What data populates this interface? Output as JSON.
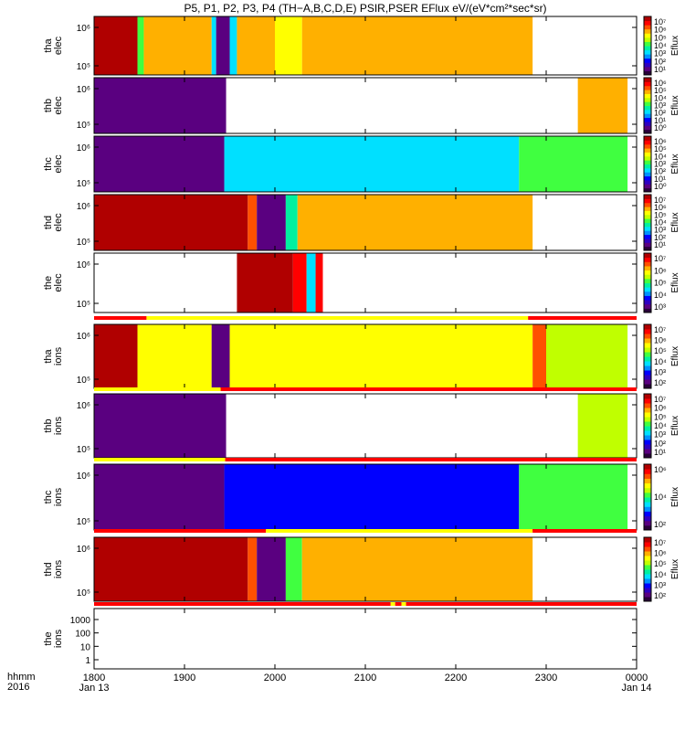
{
  "title": "P5, P1, P2, P3, P4 (TH−A,B,C,D,E) PSIR,PSER EFlux eV/(eV*cm²*sec*sr)",
  "x_axis": {
    "row_labels": [
      "hhmm",
      "2016"
    ],
    "ticks": [
      {
        "t": 1800,
        "label": "1800",
        "sub": "Jan 13"
      },
      {
        "t": 1900,
        "label": "1900",
        "sub": ""
      },
      {
        "t": 2000,
        "label": "2000",
        "sub": ""
      },
      {
        "t": 2100,
        "label": "2100",
        "sub": ""
      },
      {
        "t": 2200,
        "label": "2200",
        "sub": ""
      },
      {
        "t": 2300,
        "label": "2300",
        "sub": ""
      },
      {
        "t": 2400,
        "label": "0000",
        "sub": "Jan 14"
      }
    ]
  },
  "colors": {
    "spectrum": [
      "#2a003a",
      "#5a0080",
      "#2f00c0",
      "#0000ff",
      "#0090ff",
      "#00e0ff",
      "#00f0a0",
      "#40ff40",
      "#c0ff00",
      "#ffff00",
      "#ffb000",
      "#ff5000",
      "#ff0000",
      "#b00000"
    ],
    "bar_yellow": "#ffff00",
    "bar_red": "#ff0000"
  },
  "chart_data": [
    {
      "type": "heatmap",
      "probe": "tha",
      "species": "elec",
      "ylabel": [
        "tha",
        "elec"
      ],
      "yticks": [
        "10⁶",
        "10⁵"
      ],
      "cbar_ticks": [
        "10⁷",
        "10⁶",
        "10⁵",
        "10⁴",
        "10³",
        "10²",
        "10¹"
      ],
      "cbar_label": "Eflux",
      "segments": [
        [
          1800,
          1848,
          13
        ],
        [
          1848,
          1855,
          7
        ],
        [
          1855,
          1930,
          10
        ],
        [
          1930,
          1935,
          5
        ],
        [
          1935,
          1950,
          1
        ],
        [
          1950,
          1958,
          5
        ],
        [
          1958,
          2000,
          10
        ],
        [
          2000,
          2030,
          9
        ],
        [
          2030,
          2285,
          10
        ]
      ]
    },
    {
      "type": "heatmap",
      "probe": "thb",
      "species": "elec",
      "ylabel": [
        "thb",
        "elec"
      ],
      "yticks": [
        "10⁶",
        "10⁵"
      ],
      "cbar_ticks": [
        "10⁶",
        "10⁵",
        "10⁴",
        "10³",
        "10²",
        "10¹",
        "10⁰"
      ],
      "cbar_label": "Eflux",
      "segments": [
        [
          1800,
          1946,
          1
        ],
        [
          2335,
          2390,
          10
        ]
      ]
    },
    {
      "type": "heatmap",
      "probe": "thc",
      "species": "elec",
      "ylabel": [
        "thc",
        "elec"
      ],
      "yticks": [
        "10⁶",
        "10⁵"
      ],
      "cbar_ticks": [
        "10⁶",
        "10⁵",
        "10⁴",
        "10³",
        "10²",
        "10¹",
        "10⁰"
      ],
      "cbar_label": "Eflux",
      "segments": [
        [
          1800,
          1944,
          1
        ],
        [
          1944,
          2270,
          5
        ],
        [
          2270,
          2390,
          7
        ]
      ]
    },
    {
      "type": "heatmap",
      "probe": "thd",
      "species": "elec",
      "ylabel": [
        "thd",
        "elec"
      ],
      "yticks": [
        "10⁶",
        "10⁵"
      ],
      "cbar_ticks": [
        "10⁷",
        "10⁶",
        "10⁵",
        "10⁴",
        "10³",
        "10²",
        "10¹"
      ],
      "cbar_label": "Eflux",
      "segments": [
        [
          1800,
          1970,
          13
        ],
        [
          1970,
          1980,
          11
        ],
        [
          1980,
          2012,
          1
        ],
        [
          2012,
          2025,
          6
        ],
        [
          2025,
          2285,
          10
        ]
      ]
    },
    {
      "type": "heatmap",
      "probe": "the",
      "species": "elec",
      "ylabel": [
        "the",
        "elec"
      ],
      "yticks": [
        "10⁶",
        "10⁵"
      ],
      "cbar_ticks": [
        "10⁷",
        "10⁶",
        "10⁵",
        "10⁴",
        "10³"
      ],
      "cbar_label": "Eflux",
      "segments": [
        [
          1958,
          2020,
          13
        ],
        [
          2020,
          2035,
          12
        ],
        [
          2035,
          2045,
          5
        ],
        [
          2045,
          2053,
          12
        ]
      ]
    },
    {
      "type": "heatmap",
      "probe": "tha",
      "species": "ions",
      "ylabel": [
        "tha",
        "ions"
      ],
      "yticks": [
        "10⁶",
        "10⁵"
      ],
      "cbar_ticks": [
        "10⁷",
        "10⁶",
        "10⁵",
        "10⁴",
        "10³",
        "10²"
      ],
      "cbar_label": "Eflux",
      "segments": [
        [
          1800,
          1848,
          13
        ],
        [
          1848,
          1930,
          9
        ],
        [
          1930,
          1950,
          1
        ],
        [
          1950,
          2285,
          9
        ],
        [
          2285,
          2300,
          11
        ],
        [
          2300,
          2390,
          8
        ]
      ]
    },
    {
      "type": "heatmap",
      "probe": "thb",
      "species": "ions",
      "ylabel": [
        "thb",
        "ions"
      ],
      "yticks": [
        "10⁶",
        "10⁵"
      ],
      "cbar_ticks": [
        "10⁷",
        "10⁶",
        "10⁵",
        "10⁴",
        "10³",
        "10²",
        "10¹"
      ],
      "cbar_label": "Eflux",
      "segments": [
        [
          1800,
          1946,
          1
        ],
        [
          2335,
          2390,
          8
        ]
      ]
    },
    {
      "type": "heatmap",
      "probe": "thc",
      "species": "ions",
      "ylabel": [
        "thc",
        "ions"
      ],
      "yticks": [
        "10⁶",
        "10⁵"
      ],
      "cbar_ticks": [
        "10⁶",
        "10⁴",
        "10²"
      ],
      "cbar_label": "Eflux",
      "segments": [
        [
          1800,
          1944,
          1
        ],
        [
          1944,
          2270,
          3
        ],
        [
          2270,
          2390,
          7
        ]
      ]
    },
    {
      "type": "heatmap",
      "probe": "thd",
      "species": "ions",
      "ylabel": [
        "thd",
        "ions"
      ],
      "yticks": [
        "10⁶",
        "10⁵"
      ],
      "cbar_ticks": [
        "10⁷",
        "10⁶",
        "10⁵",
        "10⁴",
        "10³",
        "10²"
      ],
      "cbar_label": "Eflux",
      "segments": [
        [
          1800,
          1970,
          13
        ],
        [
          1970,
          1980,
          11
        ],
        [
          1980,
          2012,
          1
        ],
        [
          2012,
          2030,
          7
        ],
        [
          2030,
          2285,
          10
        ]
      ]
    },
    {
      "type": "heatmap",
      "probe": "the",
      "species": "ions",
      "ylabel": [
        "the",
        "ions"
      ],
      "yticks": [
        "1000",
        "100",
        "10",
        "1"
      ],
      "cbar_ticks": [],
      "cbar_label": "",
      "segments": []
    }
  ],
  "mode_bars": [
    {
      "segments": [
        [
          1800,
          1858,
          "red"
        ],
        [
          1858,
          2280,
          "yellow"
        ],
        [
          2280,
          2400,
          "red"
        ]
      ]
    },
    {
      "segments": [
        [
          1800,
          1940,
          "yellow"
        ],
        [
          1940,
          2400,
          "red"
        ]
      ]
    },
    {
      "segments": [
        [
          1800,
          1945,
          "yellow"
        ],
        [
          1945,
          2400,
          "red"
        ]
      ]
    },
    {
      "segments": [
        [
          1800,
          1990,
          "red"
        ],
        [
          1990,
          2285,
          "yellow"
        ],
        [
          2285,
          2400,
          "red"
        ]
      ]
    },
    {
      "segments": [
        [
          1800,
          2128,
          "red"
        ],
        [
          2128,
          2133,
          "yellow"
        ],
        [
          2133,
          2140,
          "red"
        ],
        [
          2140,
          2145,
          "yellow"
        ],
        [
          2145,
          2400,
          "red"
        ]
      ]
    }
  ]
}
